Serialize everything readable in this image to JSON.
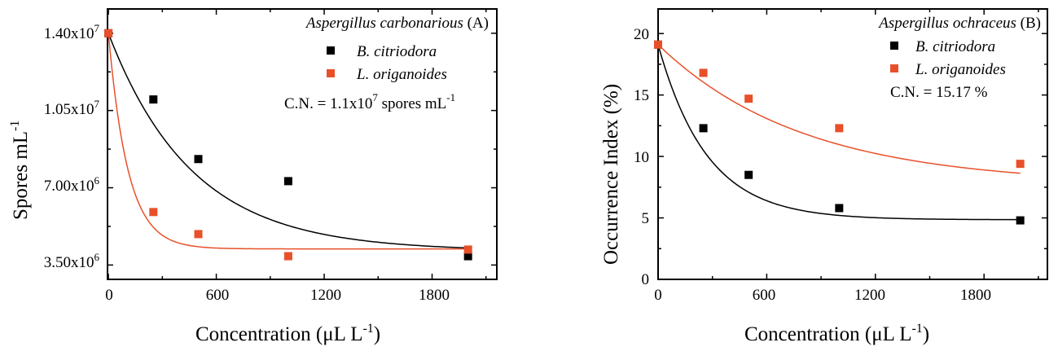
{
  "charts": [
    {
      "panel": "A",
      "title_italic": "Aspergillus carbonarious",
      "title_suffix": " (A)",
      "ylabel": "Spores mL",
      "ylabel_sup": "-1",
      "xlabel": "Concentration (μL L",
      "xlabel_sup": "-1",
      "xlabel_close": ")",
      "yticks": [
        {
          "value": 3500000,
          "base": "3.50x10",
          "exp": "6"
        },
        {
          "value": 7000000,
          "base": "7.00x10",
          "exp": "6"
        },
        {
          "value": 10500000,
          "base": "1.05x10",
          "exp": "7"
        },
        {
          "value": 14000000,
          "base": "1.40x10",
          "exp": "7"
        }
      ],
      "xticks": [
        "0",
        "600",
        "1200",
        "1800"
      ],
      "annotation": {
        "base": "C.N. = 1.1x10",
        "exp": "7",
        "mid": " spores mL",
        "exp2": "-1"
      },
      "legend": [
        {
          "name": "B. citriodora",
          "color": "#000000"
        },
        {
          "name": "L. origanoides",
          "color": "#e8502a"
        }
      ]
    },
    {
      "panel": "B",
      "title_italic": "Aspergillus ochraceus",
      "title_suffix": " (B)",
      "ylabel": "Occurrence Index (%)",
      "xlabel": "Concentration (μL L",
      "xlabel_sup": "-1",
      "xlabel_close": ")",
      "yticks": [
        {
          "value": 0,
          "label": "0"
        },
        {
          "value": 5,
          "label": "5"
        },
        {
          "value": 10,
          "label": "10"
        },
        {
          "value": 15,
          "label": "15"
        },
        {
          "value": 20,
          "label": "20"
        }
      ],
      "xticks": [
        "0",
        "600",
        "1200",
        "1800"
      ],
      "annotation": {
        "text": "C.N. = 15.17 %"
      },
      "legend": [
        {
          "name": "B. citriodora",
          "color": "#000000"
        },
        {
          "name": "L. origanoides",
          "color": "#e8502a"
        }
      ]
    }
  ],
  "chart_data": [
    {
      "type": "scatter",
      "title": "Aspergillus carbonarious (A)",
      "xlabel": "Concentration (μL L-1)",
      "ylabel": "Spores mL-1",
      "xlim": [
        -5,
        2160
      ],
      "ylim": [
        2850000,
        15100000
      ],
      "xticks": [
        0,
        600,
        1200,
        1800
      ],
      "yticks": [
        3500000,
        7000000,
        10500000,
        14000000
      ],
      "x": [
        0,
        250,
        500,
        1000,
        2000
      ],
      "series": [
        {
          "name": "B. citriodora",
          "color": "#000000",
          "values": [
            14000000,
            11000000,
            8300000,
            7300000,
            3900000
          ],
          "fit": {
            "c": 4140000,
            "a": 9860000,
            "k": 0.00215
          }
        },
        {
          "name": "L. origanoides",
          "color": "#e8502a",
          "values": [
            14000000,
            5900000,
            4900000,
            3900000,
            4200000
          ],
          "fit": {
            "c": 4230000,
            "a": 9770000,
            "k": 0.0092
          }
        }
      ],
      "annotation": "C.N. = 1.1x10^7 spores mL-1",
      "legend_position": "top-right",
      "grid": false
    },
    {
      "type": "scatter",
      "title": "Aspergillus ochraceus (B)",
      "xlabel": "Concentration (μL L-1)",
      "ylabel": "Occurrence Index (%)",
      "xlim": [
        0,
        2150
      ],
      "ylim": [
        0,
        22
      ],
      "xticks": [
        0,
        600,
        1200,
        1800
      ],
      "yticks": [
        0,
        5,
        10,
        15,
        20
      ],
      "x": [
        0,
        250,
        500,
        1000,
        2000
      ],
      "series": [
        {
          "name": "B. citriodora",
          "color": "#000000",
          "values": [
            19.1,
            12.3,
            8.5,
            5.8,
            4.8
          ],
          "fit": {
            "c": 4.85,
            "a": 14.25,
            "k": 0.0037
          }
        },
        {
          "name": "L. origanoides",
          "color": "#e8502a",
          "values": [
            19.1,
            16.8,
            14.7,
            12.3,
            9.4
          ],
          "fit": {
            "c": 7.7,
            "a": 11.4,
            "k": 0.00125
          }
        }
      ],
      "annotation": "C.N. = 15.17 %",
      "legend_position": "top-right",
      "grid": false
    }
  ]
}
